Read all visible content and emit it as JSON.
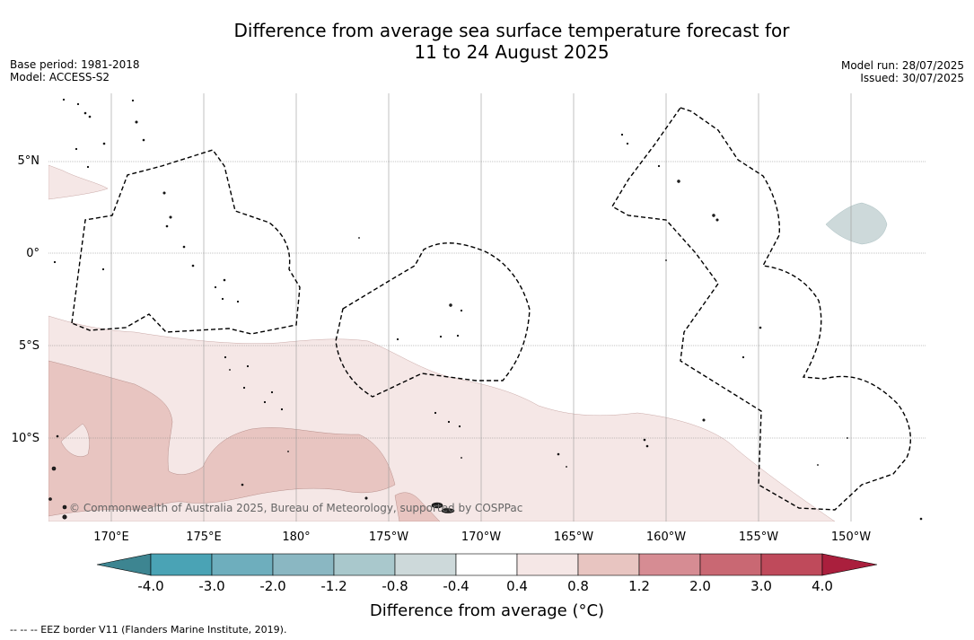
{
  "title": {
    "line1": "Difference from average sea surface temperature forecast for",
    "line2": "11 to 24 August 2025"
  },
  "meta_left": {
    "base_period": "Base period: 1981-2018",
    "model": "Model: ACCESS-S2"
  },
  "meta_right": {
    "model_run": "Model run: 28/07/2025",
    "issued": "Issued: 30/07/2025"
  },
  "map": {
    "lat_ticks": [
      {
        "label": "5°N",
        "lat": 5
      },
      {
        "label": "0°",
        "lat": 0
      },
      {
        "label": "5°S",
        "lat": -5
      },
      {
        "label": "10°S",
        "lat": -10
      }
    ],
    "lon_ticks": [
      {
        "label": "170°E",
        "lon": 170
      },
      {
        "label": "175°E",
        "lon": 175
      },
      {
        "label": "180°",
        "lon": 180
      },
      {
        "label": "175°W",
        "lon": 185
      },
      {
        "label": "170°W",
        "lon": 190
      },
      {
        "label": "165°W",
        "lon": 195
      },
      {
        "label": "160°W",
        "lon": 200
      },
      {
        "label": "155°W",
        "lon": 205
      },
      {
        "label": "150°W",
        "lon": 210
      }
    ],
    "copyright": "© Commonwealth of Australia 2025, Bureau of Meteorology, supported by COSPPac"
  },
  "colorbar": {
    "boundaries": [
      "-4.0",
      "-3.0",
      "-2.0",
      "-1.2",
      "-0.8",
      "-0.4",
      "0.4",
      "0.8",
      "1.2",
      "2.0",
      "3.0",
      "4.0"
    ],
    "colors": [
      "#4aa3b5",
      "#6eaebd",
      "#8ab7c2",
      "#a9c8cc",
      "#cdd9da",
      "#ffffff",
      "#f5e7e6",
      "#e8c5c1",
      "#d68c93",
      "#c96873",
      "#bf4a5b"
    ],
    "under_color": "#3d8591",
    "over_color": "#aa1f3d",
    "title": "Difference from average (°C)"
  },
  "footer": "--  --  -- EEZ border V11 (Flanders Marine Institute, 2019)."
}
